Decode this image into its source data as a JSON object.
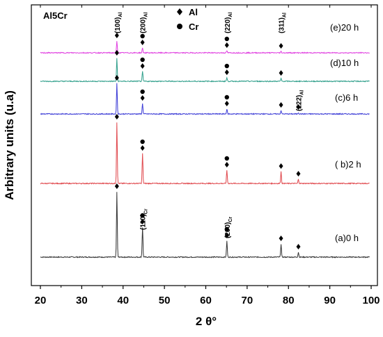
{
  "chart_data": {
    "type": "line",
    "title": "Al5Cr",
    "xlabel": "2 θ°",
    "ylabel": "Arbitrary units (u.a)",
    "xlim": [
      20,
      100
    ],
    "xticks": [
      "20",
      "30",
      "40",
      "50",
      "60",
      "70",
      "80",
      "90",
      "100"
    ],
    "legend": {
      "position": "top-center",
      "entries": [
        {
          "marker": "diamond",
          "label": "Al"
        },
        {
          "marker": "circle",
          "label": "Cr"
        }
      ]
    },
    "colors": {
      "a": "#333333",
      "b": "#e0474c",
      "c": "#3b3bd6",
      "d": "#2e9e8a",
      "e": "#e040e0"
    },
    "series": [
      {
        "name": "(a)0 h",
        "color": "#333333",
        "peaks": [
          {
            "x": 38.5,
            "height": 94
          },
          {
            "x": 44.7,
            "height": 43
          },
          {
            "x": 65.1,
            "height": 23
          },
          {
            "x": 78.2,
            "height": 19
          },
          {
            "x": 82.4,
            "height": 7
          }
        ]
      },
      {
        "name": "( b)2 h",
        "color": "#e0474c",
        "peaks": [
          {
            "x": 38.5,
            "height": 88
          },
          {
            "x": 44.7,
            "height": 43
          },
          {
            "x": 65.1,
            "height": 19
          },
          {
            "x": 78.2,
            "height": 17
          },
          {
            "x": 82.4,
            "height": 6
          }
        ]
      },
      {
        "name": "(c)6 h",
        "color": "#3b3bd6",
        "peaks": [
          {
            "x": 38.5,
            "height": 44
          },
          {
            "x": 44.7,
            "height": 15
          },
          {
            "x": 65.1,
            "height": 7
          },
          {
            "x": 78.2,
            "height": 5
          },
          {
            "x": 82.4,
            "height": 2
          }
        ]
      },
      {
        "name": "(d)10 h",
        "color": "#2e9e8a",
        "peaks": [
          {
            "x": 38.5,
            "height": 33
          },
          {
            "x": 44.7,
            "height": 14
          },
          {
            "x": 65.1,
            "height": 5
          },
          {
            "x": 78.2,
            "height": 4
          }
        ]
      },
      {
        "name": "(e)20 h",
        "color": "#e040e0",
        "peaks": [
          {
            "x": 38.5,
            "height": 17
          },
          {
            "x": 44.7,
            "height": 7
          },
          {
            "x": 65.1,
            "height": 3
          },
          {
            "x": 78.2,
            "height": 2
          }
        ]
      }
    ],
    "annotations": [
      {
        "main": "(100)",
        "sub": "Al",
        "x": 38.5
      },
      {
        "main": "(200)",
        "sub": "Al",
        "x": 44.7
      },
      {
        "main": "(220)",
        "sub": "Al",
        "x": 65.1
      },
      {
        "main": "(311)",
        "sub": "Al",
        "x": 78.2
      },
      {
        "main": "(222)",
        "sub": "Al",
        "x": 82.4
      },
      {
        "main": "(110)",
        "sub": "Cr",
        "x": 44.7
      },
      {
        "main": "(200)",
        "sub": "Cr",
        "x": 65.1
      }
    ],
    "phase_markers": [
      {
        "series": "(a)0 h",
        "x": 38.5,
        "phases": [
          "Al"
        ]
      },
      {
        "series": "(a)0 h",
        "x": 44.7,
        "phases": [
          "Al",
          "Cr"
        ]
      },
      {
        "series": "(a)0 h",
        "x": 65.1,
        "phases": [
          "Al",
          "Cr"
        ]
      },
      {
        "series": "(a)0 h",
        "x": 78.2,
        "phases": [
          "Al"
        ]
      },
      {
        "series": "(a)0 h",
        "x": 82.4,
        "phases": [
          "Al"
        ]
      },
      {
        "series": "( b)2 h",
        "x": 38.5,
        "phases": [
          "Al"
        ]
      },
      {
        "series": "( b)2 h",
        "x": 44.7,
        "phases": [
          "Al",
          "Cr"
        ]
      },
      {
        "series": "( b)2 h",
        "x": 65.1,
        "phases": [
          "Al",
          "Cr"
        ]
      },
      {
        "series": "( b)2 h",
        "x": 78.2,
        "phases": [
          "Al"
        ]
      },
      {
        "series": "( b)2 h",
        "x": 82.4,
        "phases": [
          "Al"
        ]
      },
      {
        "series": "(c)6 h",
        "x": 38.5,
        "phases": [
          "Al"
        ]
      },
      {
        "series": "(c)6 h",
        "x": 44.7,
        "phases": [
          "Al",
          "Cr"
        ]
      },
      {
        "series": "(c)6 h",
        "x": 65.1,
        "phases": [
          "Al",
          "Cr"
        ]
      },
      {
        "series": "(c)6 h",
        "x": 78.2,
        "phases": [
          "Al"
        ]
      },
      {
        "series": "(c)6 h",
        "x": 82.4,
        "phases": [
          "Al"
        ]
      },
      {
        "series": "(d)10 h",
        "x": 38.5,
        "phases": [
          "Al"
        ]
      },
      {
        "series": "(d)10 h",
        "x": 44.7,
        "phases": [
          "Al",
          "Cr"
        ]
      },
      {
        "series": "(d)10 h",
        "x": 65.1,
        "phases": [
          "Al",
          "Cr"
        ]
      },
      {
        "series": "(d)10 h",
        "x": 78.2,
        "phases": [
          "Al"
        ]
      },
      {
        "series": "(e)20 h",
        "x": 38.5,
        "phases": [
          "Al"
        ]
      },
      {
        "series": "(e)20 h",
        "x": 44.7,
        "phases": [
          "Al",
          "Cr"
        ]
      },
      {
        "series": "(e)20 h",
        "x": 65.1,
        "phases": [
          "Al",
          "Cr"
        ]
      },
      {
        "series": "(e)20 h",
        "x": 78.2,
        "phases": [
          "Al"
        ]
      }
    ]
  }
}
